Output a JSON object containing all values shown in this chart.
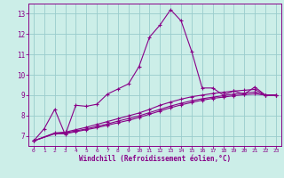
{
  "background_color": "#cceee8",
  "line_color": "#880088",
  "grid_color": "#99cccc",
  "xlabel": "Windchill (Refroidissement éolien,°C)",
  "xlabel_color": "#880088",
  "xtick_color": "#880088",
  "ytick_color": "#880088",
  "spine_color": "#880088",
  "xlim": [
    -0.5,
    23.5
  ],
  "ylim": [
    6.5,
    13.5
  ],
  "yticks": [
    7,
    8,
    9,
    10,
    11,
    12,
    13
  ],
  "xticks": [
    0,
    1,
    2,
    3,
    4,
    5,
    6,
    7,
    8,
    9,
    10,
    11,
    12,
    13,
    14,
    15,
    16,
    17,
    18,
    19,
    20,
    21,
    22,
    23
  ],
  "series": [
    {
      "x": [
        0,
        1,
        2,
        3,
        4,
        5,
        6,
        7,
        8,
        9,
        10,
        11,
        12,
        13,
        14,
        15,
        16,
        17,
        18,
        19,
        20,
        21,
        22,
        23
      ],
      "y": [
        6.75,
        7.35,
        8.3,
        7.05,
        8.5,
        8.45,
        8.55,
        9.05,
        9.3,
        9.55,
        10.4,
        11.85,
        12.45,
        13.2,
        12.65,
        11.15,
        9.35,
        9.35,
        9.0,
        9.2,
        9.05,
        9.4,
        9.0,
        9.0
      ]
    },
    {
      "x": [
        0,
        2,
        3,
        4,
        5,
        6,
        7,
        8,
        9,
        10,
        11,
        12,
        13,
        14,
        15,
        16,
        17,
        18,
        19,
        20,
        21,
        22,
        23
      ],
      "y": [
        6.75,
        7.1,
        7.1,
        7.2,
        7.3,
        7.4,
        7.52,
        7.64,
        7.76,
        7.9,
        8.06,
        8.22,
        8.38,
        8.52,
        8.64,
        8.75,
        8.84,
        8.9,
        8.97,
        9.02,
        9.06,
        9.0,
        9.0
      ]
    },
    {
      "x": [
        0,
        2,
        3,
        4,
        5,
        6,
        7,
        8,
        9,
        10,
        11,
        12,
        13,
        14,
        15,
        16,
        17,
        18,
        19,
        20,
        21,
        22,
        23
      ],
      "y": [
        6.75,
        7.12,
        7.14,
        7.24,
        7.34,
        7.46,
        7.58,
        7.72,
        7.85,
        7.98,
        8.14,
        8.3,
        8.46,
        8.6,
        8.72,
        8.82,
        8.9,
        8.97,
        9.05,
        9.1,
        9.15,
        9.0,
        9.0
      ]
    },
    {
      "x": [
        0,
        2,
        3,
        4,
        5,
        6,
        7,
        8,
        9,
        10,
        11,
        12,
        13,
        14,
        15,
        16,
        17,
        18,
        19,
        20,
        21,
        22,
        23
      ],
      "y": [
        6.75,
        7.14,
        7.18,
        7.3,
        7.42,
        7.56,
        7.7,
        7.84,
        7.98,
        8.12,
        8.3,
        8.5,
        8.66,
        8.8,
        8.92,
        9.0,
        9.08,
        9.14,
        9.2,
        9.24,
        9.28,
        9.0,
        9.0
      ]
    }
  ]
}
